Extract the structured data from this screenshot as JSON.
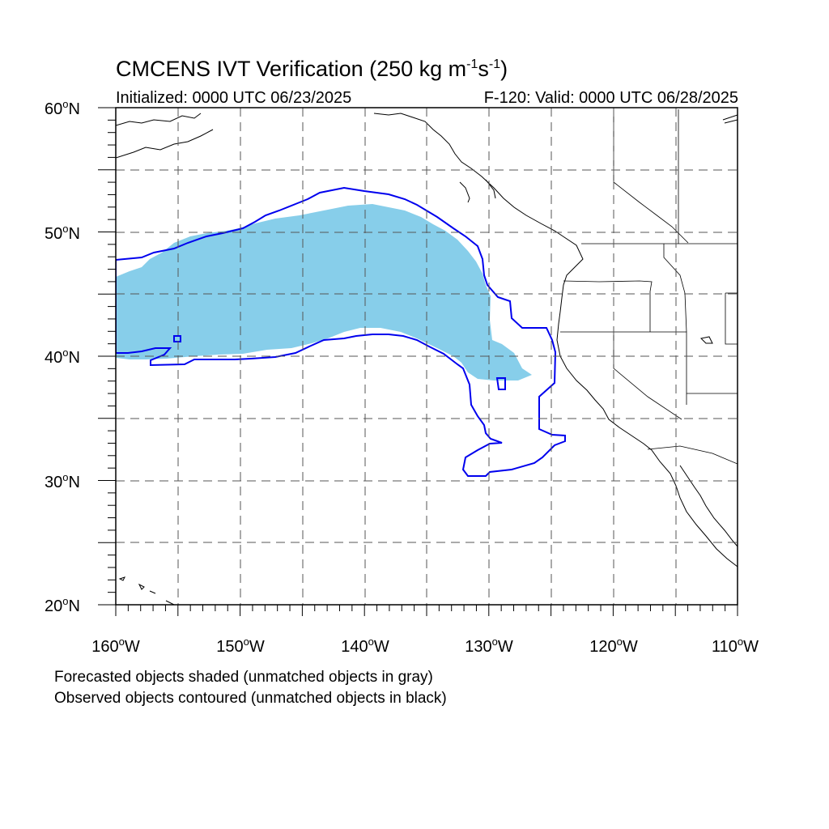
{
  "title": {
    "main": "CMCENS IVT Verification (250 kg m",
    "sup1": "-1",
    "mid": "s",
    "sup2": "-1",
    "end": ")"
  },
  "subtitle_left": "Initialized: 0000 UTC 06/23/2025",
  "subtitle_right": "F-120: Valid: 0000 UTC 06/28/2025",
  "lat_labels": [
    "60",
    "50",
    "40",
    "30",
    "20"
  ],
  "lat_suffix": "N",
  "lon_labels": [
    "160",
    "150",
    "140",
    "130",
    "120",
    "110"
  ],
  "lon_suffix": "W",
  "degree_symbol": "o",
  "footnote_1": "Forecasted objects shaded (unmatched objects in gray)",
  "footnote_2": "Observed objects contoured (unmatched objects in black)",
  "colors": {
    "forecast_fill": "#87ceea",
    "observed_contour": "#0000ee",
    "coast": "#000000",
    "grid": "#555555"
  }
}
